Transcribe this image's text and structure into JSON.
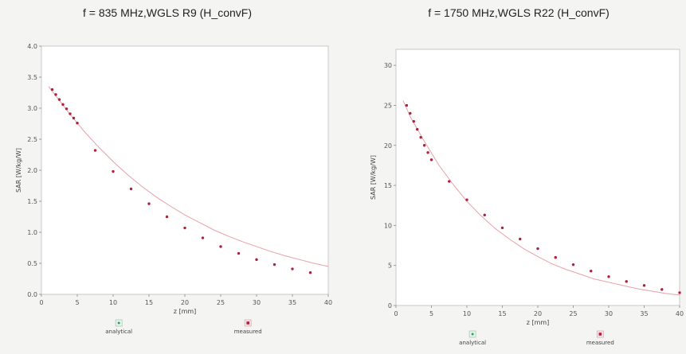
{
  "chart_data": [
    {
      "type": "line",
      "title": "f = 835 MHz,WGLS R9 (H_convF)",
      "xlabel": "z [mm]",
      "ylabel": "SAR [W/kg/W]",
      "xlim": [
        0,
        40
      ],
      "ylim": [
        0,
        4.0
      ],
      "xticks": [
        "0",
        "5",
        "10",
        "15",
        "20",
        "25",
        "30",
        "35",
        "40"
      ],
      "yticks": [
        "0.0",
        "0.5",
        "1.0",
        "1.5",
        "2.0",
        "2.5",
        "3.0",
        "3.5",
        "4.0"
      ],
      "grid": false,
      "legend_placement": "bottom",
      "series": [
        {
          "name": "analytical",
          "color": "#e8a0a8",
          "x": [
            1,
            2,
            4,
            6,
            8,
            10,
            12,
            14,
            16,
            18,
            20,
            22,
            24,
            26,
            28,
            30,
            32,
            34,
            36,
            38,
            40
          ],
          "y": [
            3.35,
            3.2,
            2.9,
            2.62,
            2.37,
            2.14,
            1.93,
            1.74,
            1.57,
            1.42,
            1.28,
            1.16,
            1.04,
            0.94,
            0.85,
            0.77,
            0.69,
            0.62,
            0.56,
            0.5,
            0.45
          ]
        },
        {
          "name": "measured",
          "color": "#b0203a",
          "x": [
            1.5,
            2,
            2.5,
            3,
            3.5,
            4,
            4.5,
            5,
            7.5,
            10,
            12.5,
            15,
            17.5,
            20,
            22.5,
            25,
            27.5,
            30,
            32.5,
            35,
            37.5
          ],
          "y": [
            3.3,
            3.22,
            3.14,
            3.06,
            2.99,
            2.91,
            2.84,
            2.76,
            2.32,
            1.98,
            1.7,
            1.46,
            1.25,
            1.07,
            0.91,
            0.77,
            0.66,
            0.56,
            0.48,
            0.41,
            0.35
          ]
        }
      ]
    },
    {
      "type": "line",
      "title": "f = 1750 MHz,WGLS R22 (H_convF)",
      "xlabel": "z [mm]",
      "ylabel": "SAR [W/kg/W]",
      "xlim": [
        0,
        40
      ],
      "ylim": [
        0,
        32
      ],
      "xticks": [
        "0",
        "5",
        "10",
        "15",
        "20",
        "25",
        "30",
        "35",
        "40"
      ],
      "yticks": [
        "0",
        "5",
        "10",
        "15",
        "20",
        "25",
        "30"
      ],
      "grid": false,
      "legend_placement": "bottom",
      "series": [
        {
          "name": "analytical",
          "color": "#e8a0a8",
          "x": [
            1,
            2,
            4,
            6,
            8,
            10,
            12,
            14,
            16,
            18,
            20,
            22,
            24,
            26,
            28,
            30,
            32,
            34,
            36,
            38,
            40
          ],
          "y": [
            25.6,
            23.6,
            20.5,
            17.6,
            15.2,
            13.0,
            11.2,
            9.6,
            8.3,
            7.1,
            6.1,
            5.2,
            4.5,
            3.9,
            3.3,
            2.9,
            2.5,
            2.1,
            1.8,
            1.5,
            1.3
          ]
        },
        {
          "name": "measured",
          "color": "#b0203a",
          "x": [
            1.5,
            2,
            2.5,
            3,
            3.5,
            4,
            4.5,
            5,
            7.5,
            10,
            12.5,
            15,
            17.5,
            20,
            22.5,
            25,
            27.5,
            30,
            32.5,
            35,
            37.5,
            40
          ],
          "y": [
            25,
            24,
            23,
            22,
            21,
            20,
            19.1,
            18.2,
            15.5,
            13.2,
            11.3,
            9.7,
            8.3,
            7.1,
            6.0,
            5.1,
            4.3,
            3.6,
            3.0,
            2.5,
            2.0,
            1.6
          ]
        }
      ]
    }
  ]
}
